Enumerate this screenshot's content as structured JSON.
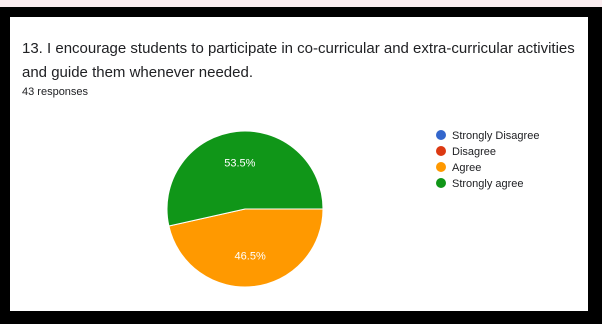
{
  "question": {
    "title": "13. I encourage students to participate in co-curricular and extra-curricular activities and guide them whenever needed.",
    "responses": "43 responses"
  },
  "colors": {
    "strongly_disagree": "#3366cc",
    "disagree": "#dc3912",
    "agree": "#ff9900",
    "strongly_agree": "#109618"
  },
  "chart_data": {
    "type": "pie",
    "categories": [
      "Strongly Disagree",
      "Disagree",
      "Agree",
      "Strongly agree"
    ],
    "values": [
      0,
      0,
      46.5,
      53.5
    ],
    "labels": [
      "",
      "",
      "46.5%",
      "53.5%"
    ],
    "colors": [
      "#3366cc",
      "#dc3912",
      "#ff9900",
      "#109618"
    ],
    "legend_position": "right"
  }
}
